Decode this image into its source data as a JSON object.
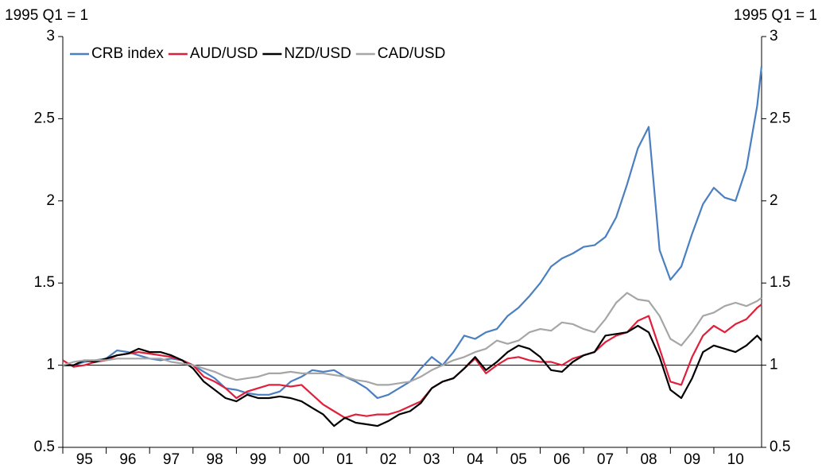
{
  "chart_data": {
    "type": "line",
    "y_label": "1995 Q1 = 1",
    "y2_label": "1995 Q1 = 1",
    "xlim": [
      0,
      16.1
    ],
    "xticks": [
      {
        "value": 0.5,
        "label": "95"
      },
      {
        "value": 1.5,
        "label": "96"
      },
      {
        "value": 2.5,
        "label": "97"
      },
      {
        "value": 3.5,
        "label": "98"
      },
      {
        "value": 4.5,
        "label": "99"
      },
      {
        "value": 5.5,
        "label": "00"
      },
      {
        "value": 6.5,
        "label": "01"
      },
      {
        "value": 7.5,
        "label": "02"
      },
      {
        "value": 8.5,
        "label": "03"
      },
      {
        "value": 9.5,
        "label": "04"
      },
      {
        "value": 10.5,
        "label": "05"
      },
      {
        "value": 11.5,
        "label": "06"
      },
      {
        "value": 12.5,
        "label": "07"
      },
      {
        "value": 13.5,
        "label": "08"
      },
      {
        "value": 14.5,
        "label": "09"
      },
      {
        "value": 15.5,
        "label": "10"
      }
    ],
    "ylim": [
      0.5,
      3
    ],
    "yticks": [
      0.5,
      1,
      1.5,
      2,
      2.5,
      3
    ],
    "y2lim": [
      0.5,
      3
    ],
    "y2ticks": [
      0.5,
      1,
      1.5,
      2,
      2.5,
      3
    ],
    "hline": 1,
    "legend": "top-left",
    "x": [
      0,
      0.25,
      0.5,
      0.75,
      1,
      1.25,
      1.5,
      1.75,
      2,
      2.25,
      2.5,
      2.75,
      3,
      3.25,
      3.5,
      3.75,
      4,
      4.25,
      4.5,
      4.75,
      5,
      5.25,
      5.5,
      5.75,
      6,
      6.25,
      6.5,
      6.75,
      7,
      7.25,
      7.5,
      7.75,
      8,
      8.25,
      8.5,
      8.75,
      9,
      9.25,
      9.5,
      9.75,
      10,
      10.25,
      10.5,
      10.75,
      11,
      11.25,
      11.5,
      11.75,
      12,
      12.25,
      12.5,
      12.75,
      13,
      13.25,
      13.5,
      13.75,
      14,
      14.25,
      14.5,
      14.75,
      15,
      15.25,
      15.5,
      15.75,
      16,
      16.1
    ],
    "series": [
      {
        "name": "CRB index",
        "color": "#4a7fc1",
        "values": [
          1.0,
          1.0,
          1.02,
          1.03,
          1.04,
          1.09,
          1.08,
          1.06,
          1.04,
          1.03,
          1.04,
          1.03,
          1.0,
          0.96,
          0.92,
          0.86,
          0.85,
          0.83,
          0.82,
          0.82,
          0.84,
          0.9,
          0.93,
          0.97,
          0.96,
          0.97,
          0.93,
          0.9,
          0.86,
          0.8,
          0.82,
          0.86,
          0.9,
          0.98,
          1.05,
          1.0,
          1.08,
          1.18,
          1.16,
          1.2,
          1.22,
          1.3,
          1.35,
          1.42,
          1.5,
          1.6,
          1.65,
          1.68,
          1.72,
          1.73,
          1.78,
          1.9,
          2.1,
          2.32,
          2.45,
          1.7,
          1.52,
          1.6,
          1.8,
          1.98,
          2.08,
          2.02,
          2.0,
          2.2,
          2.58,
          2.82
        ]
      },
      {
        "name": "AUD/USD",
        "color": "#e0203a",
        "values": [
          1.03,
          0.99,
          1.0,
          1.02,
          1.03,
          1.06,
          1.07,
          1.08,
          1.07,
          1.06,
          1.05,
          1.03,
          1.0,
          0.93,
          0.9,
          0.86,
          0.8,
          0.84,
          0.86,
          0.88,
          0.88,
          0.87,
          0.88,
          0.82,
          0.76,
          0.72,
          0.68,
          0.7,
          0.69,
          0.7,
          0.7,
          0.72,
          0.75,
          0.78,
          0.86,
          0.9,
          0.92,
          0.98,
          1.04,
          0.95,
          1.0,
          1.04,
          1.05,
          1.03,
          1.02,
          1.02,
          1.0,
          1.04,
          1.06,
          1.08,
          1.14,
          1.18,
          1.2,
          1.27,
          1.3,
          1.1,
          0.9,
          0.88,
          1.05,
          1.18,
          1.24,
          1.2,
          1.25,
          1.28,
          1.35,
          1.37
        ]
      },
      {
        "name": "NZD/USD",
        "color": "#000000",
        "values": [
          1.0,
          1.0,
          1.03,
          1.02,
          1.04,
          1.06,
          1.07,
          1.1,
          1.08,
          1.08,
          1.06,
          1.03,
          0.98,
          0.9,
          0.85,
          0.8,
          0.78,
          0.82,
          0.8,
          0.8,
          0.81,
          0.8,
          0.78,
          0.74,
          0.7,
          0.63,
          0.68,
          0.65,
          0.64,
          0.63,
          0.66,
          0.7,
          0.72,
          0.77,
          0.86,
          0.9,
          0.92,
          0.98,
          1.05,
          0.97,
          1.02,
          1.08,
          1.12,
          1.1,
          1.05,
          0.97,
          0.96,
          1.02,
          1.06,
          1.08,
          1.18,
          1.19,
          1.2,
          1.24,
          1.2,
          1.05,
          0.85,
          0.8,
          0.92,
          1.08,
          1.12,
          1.1,
          1.08,
          1.12,
          1.18,
          1.15
        ]
      },
      {
        "name": "CAD/USD",
        "color": "#a6a6a6",
        "values": [
          1.0,
          1.02,
          1.03,
          1.03,
          1.03,
          1.04,
          1.04,
          1.04,
          1.04,
          1.04,
          1.02,
          1.01,
          1.0,
          0.98,
          0.96,
          0.93,
          0.91,
          0.92,
          0.93,
          0.95,
          0.95,
          0.96,
          0.95,
          0.95,
          0.95,
          0.94,
          0.93,
          0.91,
          0.9,
          0.88,
          0.88,
          0.89,
          0.9,
          0.93,
          0.97,
          1.0,
          1.03,
          1.05,
          1.08,
          1.1,
          1.15,
          1.13,
          1.15,
          1.2,
          1.22,
          1.21,
          1.26,
          1.25,
          1.22,
          1.2,
          1.28,
          1.38,
          1.44,
          1.4,
          1.39,
          1.3,
          1.16,
          1.12,
          1.2,
          1.3,
          1.32,
          1.36,
          1.38,
          1.36,
          1.39,
          1.41
        ]
      }
    ]
  }
}
